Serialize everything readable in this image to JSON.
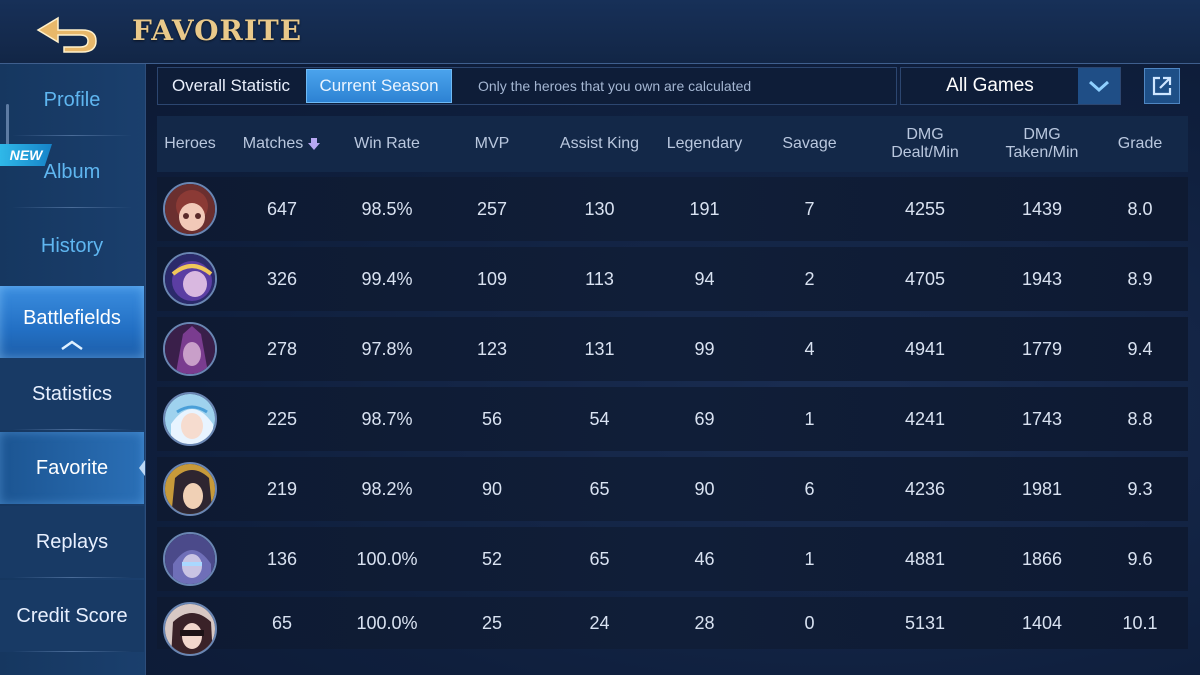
{
  "header": {
    "title": "FAVORITE",
    "back_icon": "back-arrow-icon"
  },
  "sidebar": {
    "new_badge": "NEW",
    "items": [
      {
        "label": "Profile"
      },
      {
        "label": "Album"
      },
      {
        "label": "History"
      },
      {
        "label": "Battlefields"
      },
      {
        "label": "Statistics"
      },
      {
        "label": "Favorite"
      },
      {
        "label": "Replays"
      },
      {
        "label": "Credit Score"
      }
    ]
  },
  "topbar": {
    "tabs": [
      {
        "label": "Overall Statistic"
      },
      {
        "label": "Current Season",
        "active": true
      }
    ],
    "note": "Only the heroes that you own are calculated",
    "dropdown": {
      "selected": "All Games"
    }
  },
  "table": {
    "columns": [
      {
        "label": "Heroes"
      },
      {
        "label": "Matches"
      },
      {
        "label": "Win Rate"
      },
      {
        "label": "MVP"
      },
      {
        "label": "Assist King"
      },
      {
        "label": "Legendary"
      },
      {
        "label": "Savage"
      },
      {
        "label": "DMG Dealt/Min"
      },
      {
        "label": "DMG Taken/Min"
      },
      {
        "label": "Grade"
      }
    ],
    "sorted_column": "Matches",
    "rows": [
      {
        "matches": "647",
        "win_rate": "98.5%",
        "mvp": "257",
        "assist_king": "130",
        "legendary": "191",
        "savage": "7",
        "dmg_dealt": "4255",
        "dmg_taken": "1439",
        "grade": "8.0"
      },
      {
        "matches": "326",
        "win_rate": "99.4%",
        "mvp": "109",
        "assist_king": "113",
        "legendary": "94",
        "savage": "2",
        "dmg_dealt": "4705",
        "dmg_taken": "1943",
        "grade": "8.9"
      },
      {
        "matches": "278",
        "win_rate": "97.8%",
        "mvp": "123",
        "assist_king": "131",
        "legendary": "99",
        "savage": "4",
        "dmg_dealt": "4941",
        "dmg_taken": "1779",
        "grade": "9.4"
      },
      {
        "matches": "225",
        "win_rate": "98.7%",
        "mvp": "56",
        "assist_king": "54",
        "legendary": "69",
        "savage": "1",
        "dmg_dealt": "4241",
        "dmg_taken": "1743",
        "grade": "8.8"
      },
      {
        "matches": "219",
        "win_rate": "98.2%",
        "mvp": "90",
        "assist_king": "65",
        "legendary": "90",
        "savage": "6",
        "dmg_dealt": "4236",
        "dmg_taken": "1981",
        "grade": "9.3"
      },
      {
        "matches": "136",
        "win_rate": "100.0%",
        "mvp": "52",
        "assist_king": "65",
        "legendary": "46",
        "savage": "1",
        "dmg_dealt": "4881",
        "dmg_taken": "1866",
        "grade": "9.6"
      },
      {
        "matches": "65",
        "win_rate": "100.0%",
        "mvp": "25",
        "assist_king": "24",
        "legendary": "28",
        "savage": "0",
        "dmg_dealt": "5131",
        "dmg_taken": "1404",
        "grade": "10.1"
      }
    ]
  }
}
